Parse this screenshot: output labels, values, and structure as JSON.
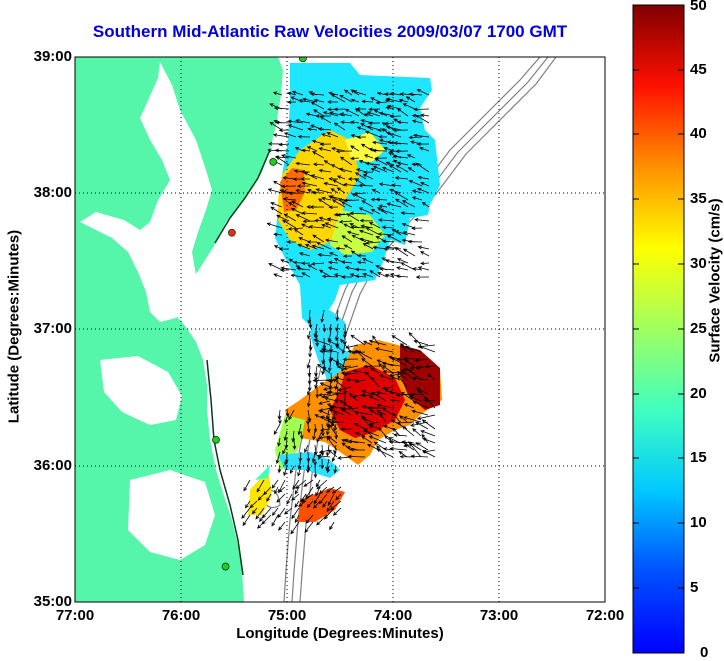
{
  "title": "Southern Mid-Atlantic Raw Velocities 2009/03/07 1700 GMT",
  "axes": {
    "xlabel": "Longitude (Degrees:Minutes)",
    "ylabel": "Latitude (Degrees:Minutes)",
    "x_ticks": [
      "77:00",
      "76:00",
      "75:00",
      "74:00",
      "73:00",
      "72:00"
    ],
    "y_ticks": [
      "39:00",
      "38:00",
      "37:00",
      "36:00",
      "35:00"
    ],
    "xlim": [
      -77,
      -72
    ],
    "ylim": [
      35,
      39
    ],
    "grid": "dotted"
  },
  "colorbar": {
    "label": "Surface Velocity (cm/s)",
    "ticks": [
      "50",
      "45",
      "40",
      "35",
      "30",
      "25",
      "20",
      "15",
      "10",
      "5",
      "0"
    ],
    "range": [
      0,
      50
    ],
    "colormap": "jet"
  },
  "colors": {
    "title": "#0000e0",
    "land": "#55f5aa",
    "sea": "#ffffff",
    "bathymetry": "#808080",
    "site_marker": "#22cc22",
    "site_marker_alt": "#ff2222"
  },
  "sites": [
    {
      "lon": -74.85,
      "lat": 38.99,
      "color": "green"
    },
    {
      "lon": -75.13,
      "lat": 38.23,
      "color": "green"
    },
    {
      "lon": -75.52,
      "lat": 37.71,
      "color": "red"
    },
    {
      "lon": -75.67,
      "lat": 36.19,
      "color": "green"
    },
    {
      "lon": -75.58,
      "lat": 35.26,
      "color": "green"
    }
  ]
}
